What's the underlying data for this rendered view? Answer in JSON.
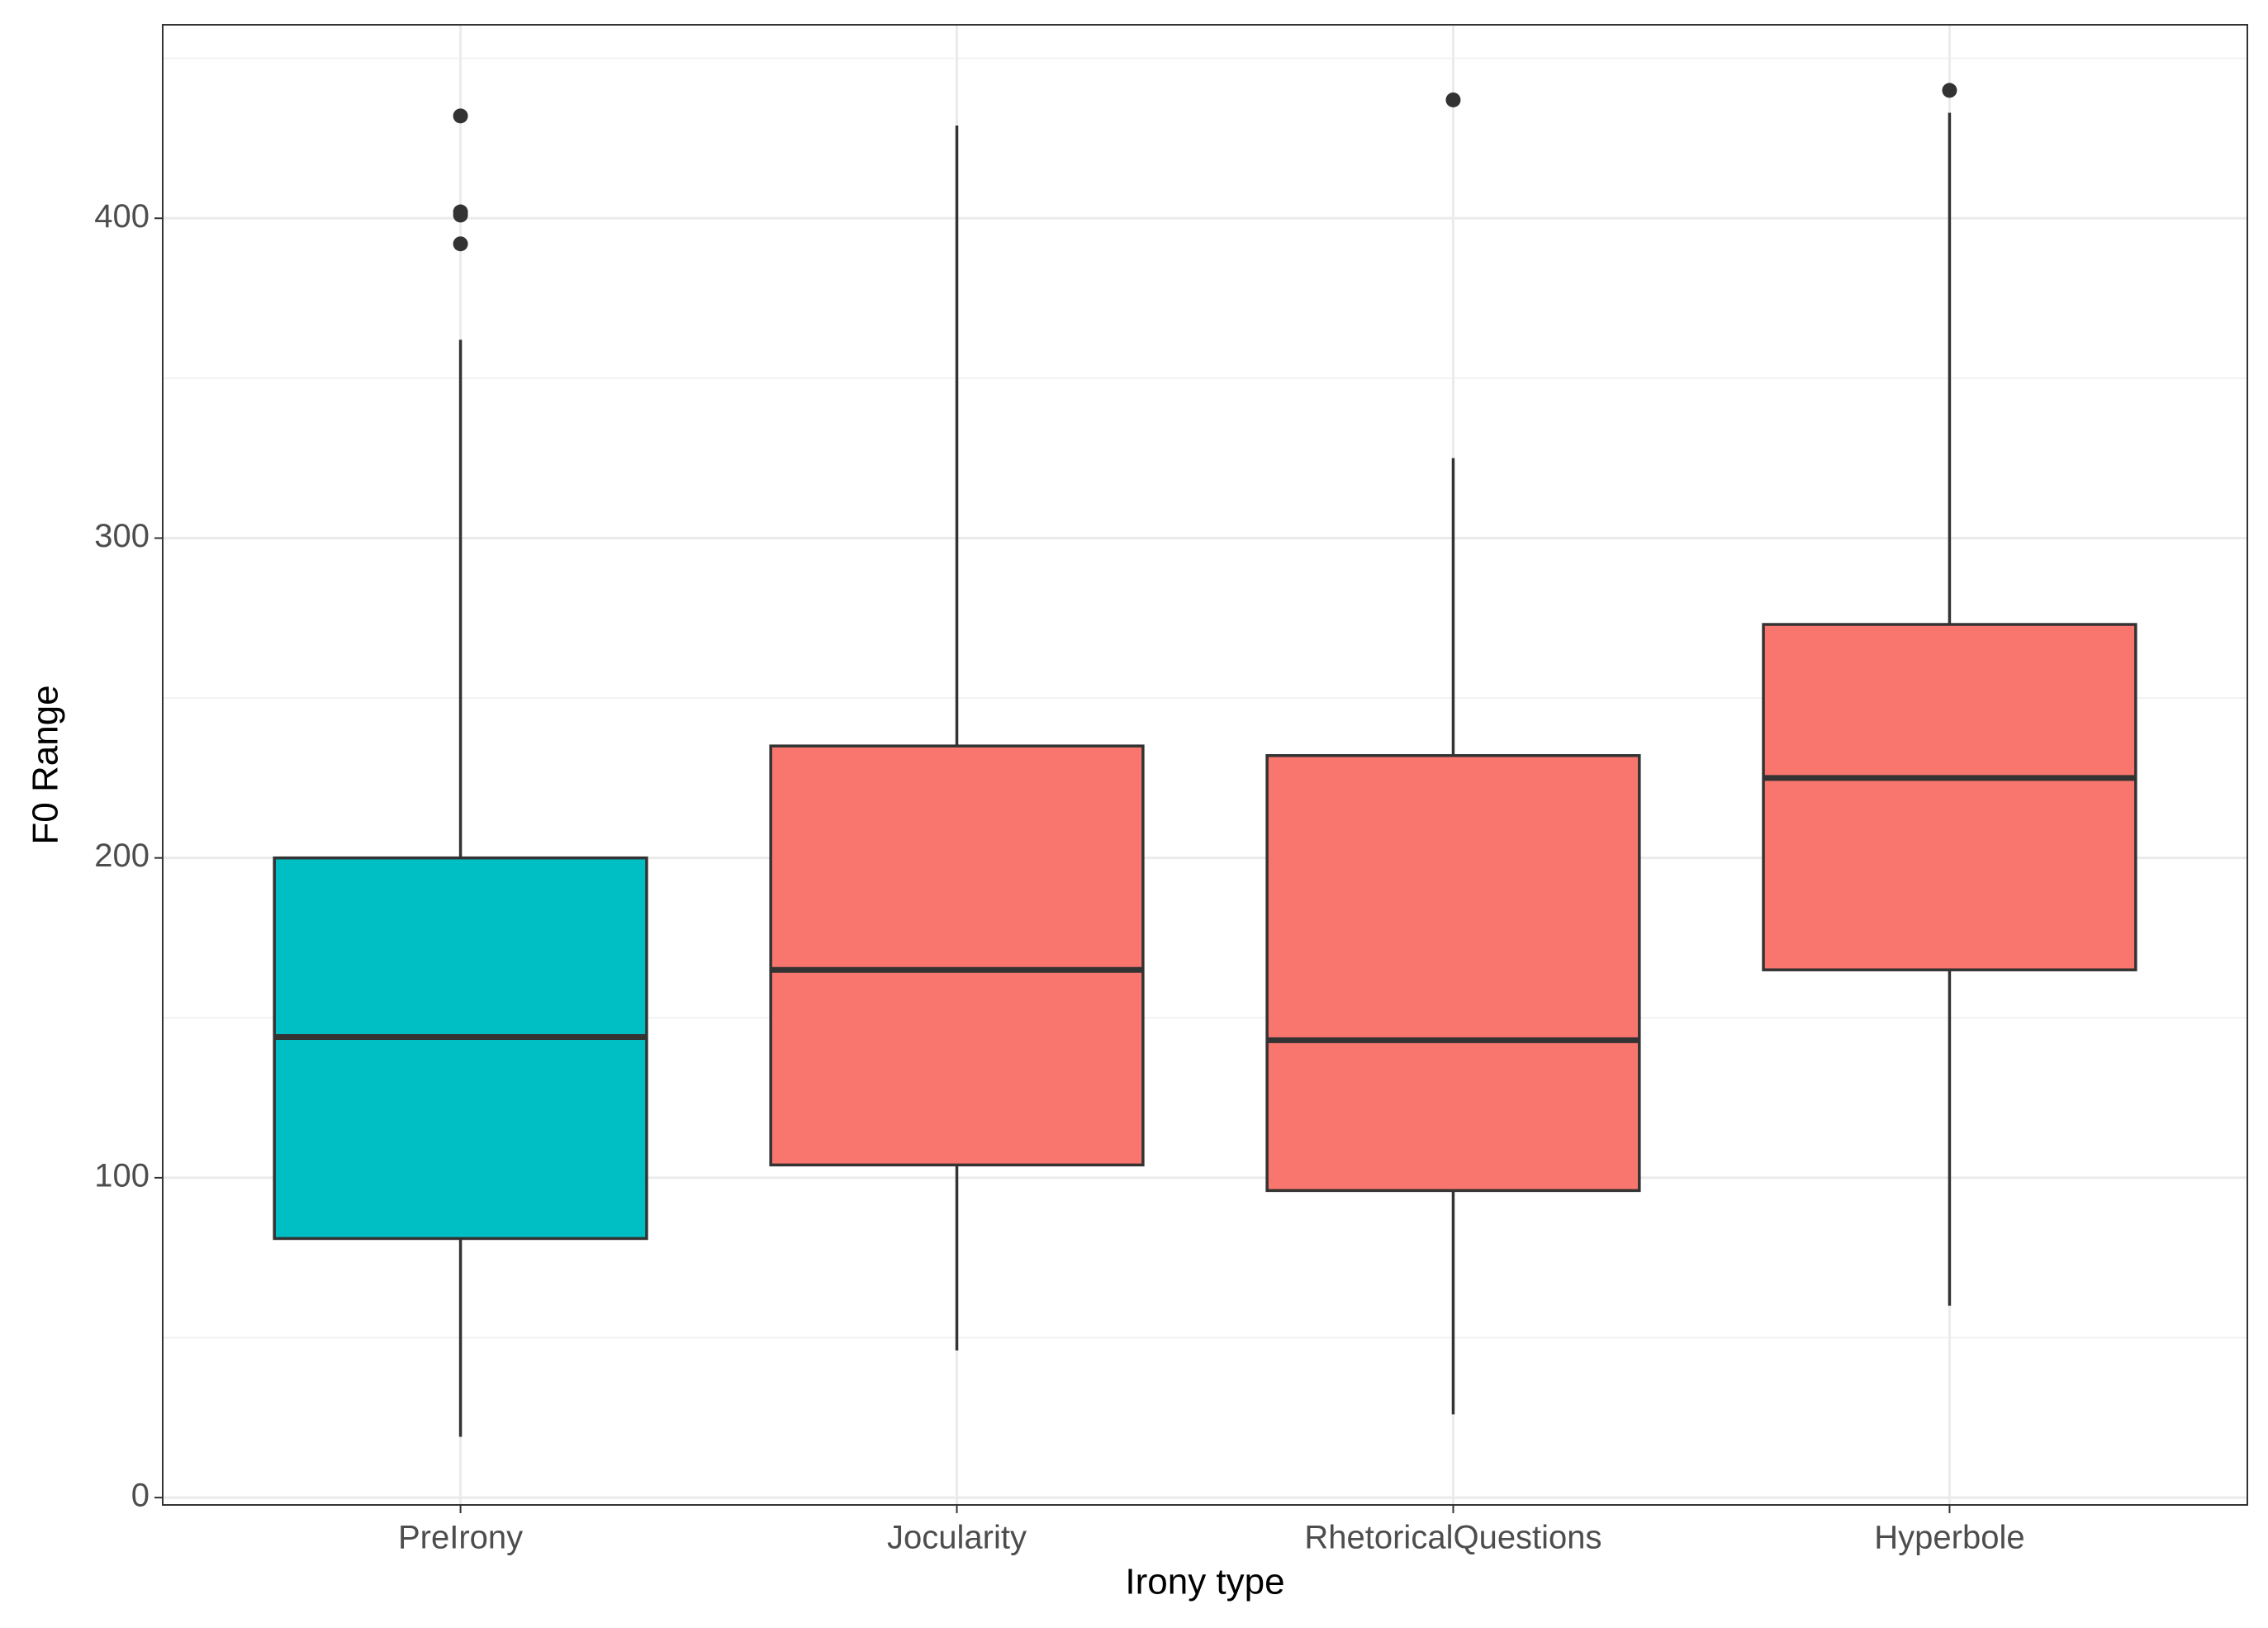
{
  "chart_data": {
    "type": "box",
    "x_label": "Irony type",
    "y_label": "F0 Range",
    "categories": [
      "PreIrony",
      "Jocularity",
      "RhetoricalQuestions",
      "Hyperbole"
    ],
    "boxes": [
      {
        "whislo": 19,
        "q1": 81,
        "med": 144,
        "q3": 200,
        "whishi": 362,
        "fliers": [
          432,
          402,
          401,
          392
        ],
        "color": "#00BFC4"
      },
      {
        "whislo": 46,
        "q1": 104,
        "med": 165,
        "q3": 235,
        "whishi": 429,
        "fliers": [],
        "color": "#F8766D"
      },
      {
        "whislo": 26,
        "q1": 96,
        "med": 143,
        "q3": 232,
        "whishi": 325,
        "fliers": [
          437
        ],
        "color": "#F8766D"
      },
      {
        "whislo": 60,
        "q1": 165,
        "med": 225,
        "q3": 273,
        "whishi": 433,
        "fliers": [
          440
        ],
        "color": "#F8766D"
      }
    ],
    "ylim": [
      -2.3,
      460.5
    ],
    "yticks": [
      0,
      100,
      200,
      300,
      400
    ],
    "grid": true
  }
}
